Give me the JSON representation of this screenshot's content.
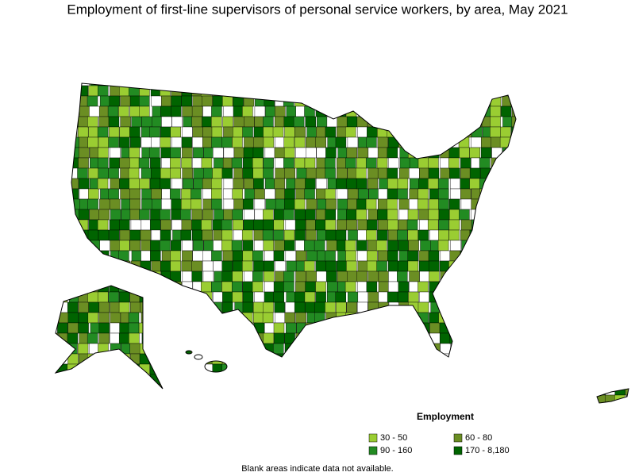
{
  "title": "Employment of first-line supervisors of personal service workers, by area, May 2021",
  "legend": {
    "title": "Employment",
    "items": [
      {
        "label": "30 - 50",
        "color": "#9acd32"
      },
      {
        "label": "60 - 80",
        "color": "#6b8e23"
      },
      {
        "label": "90 - 160",
        "color": "#228b22"
      },
      {
        "label": "170 - 8,180",
        "color": "#006400"
      }
    ]
  },
  "note": "Blank areas indicate data not available."
}
